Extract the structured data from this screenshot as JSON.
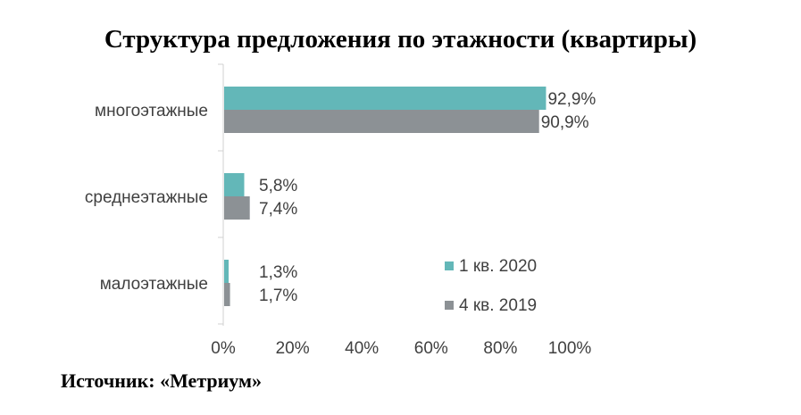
{
  "title": "Структура предложения по этажности (квартиры)",
  "source": "Источник: «Метриум»",
  "chart_data": {
    "type": "bar",
    "orientation": "horizontal",
    "categories": [
      "многоэтажные",
      "среднеэтажные",
      "малоэтажные"
    ],
    "series": [
      {
        "name": "1 кв. 2020",
        "values": [
          92.9,
          5.8,
          1.3
        ],
        "labels": [
          "92,9%",
          "5,8%",
          "1,3%"
        ],
        "color": "#63b7b8"
      },
      {
        "name": "4 кв. 2019",
        "values": [
          90.9,
          7.4,
          1.7
        ],
        "labels": [
          "90,9%",
          "7,4%",
          "1,7%"
        ],
        "color": "#8c9195"
      }
    ],
    "xlim": [
      0,
      100
    ],
    "xticks": [
      "0%",
      "20%",
      "40%",
      "60%",
      "80%",
      "100%"
    ],
    "grid": false,
    "legend": "bottom-right"
  }
}
